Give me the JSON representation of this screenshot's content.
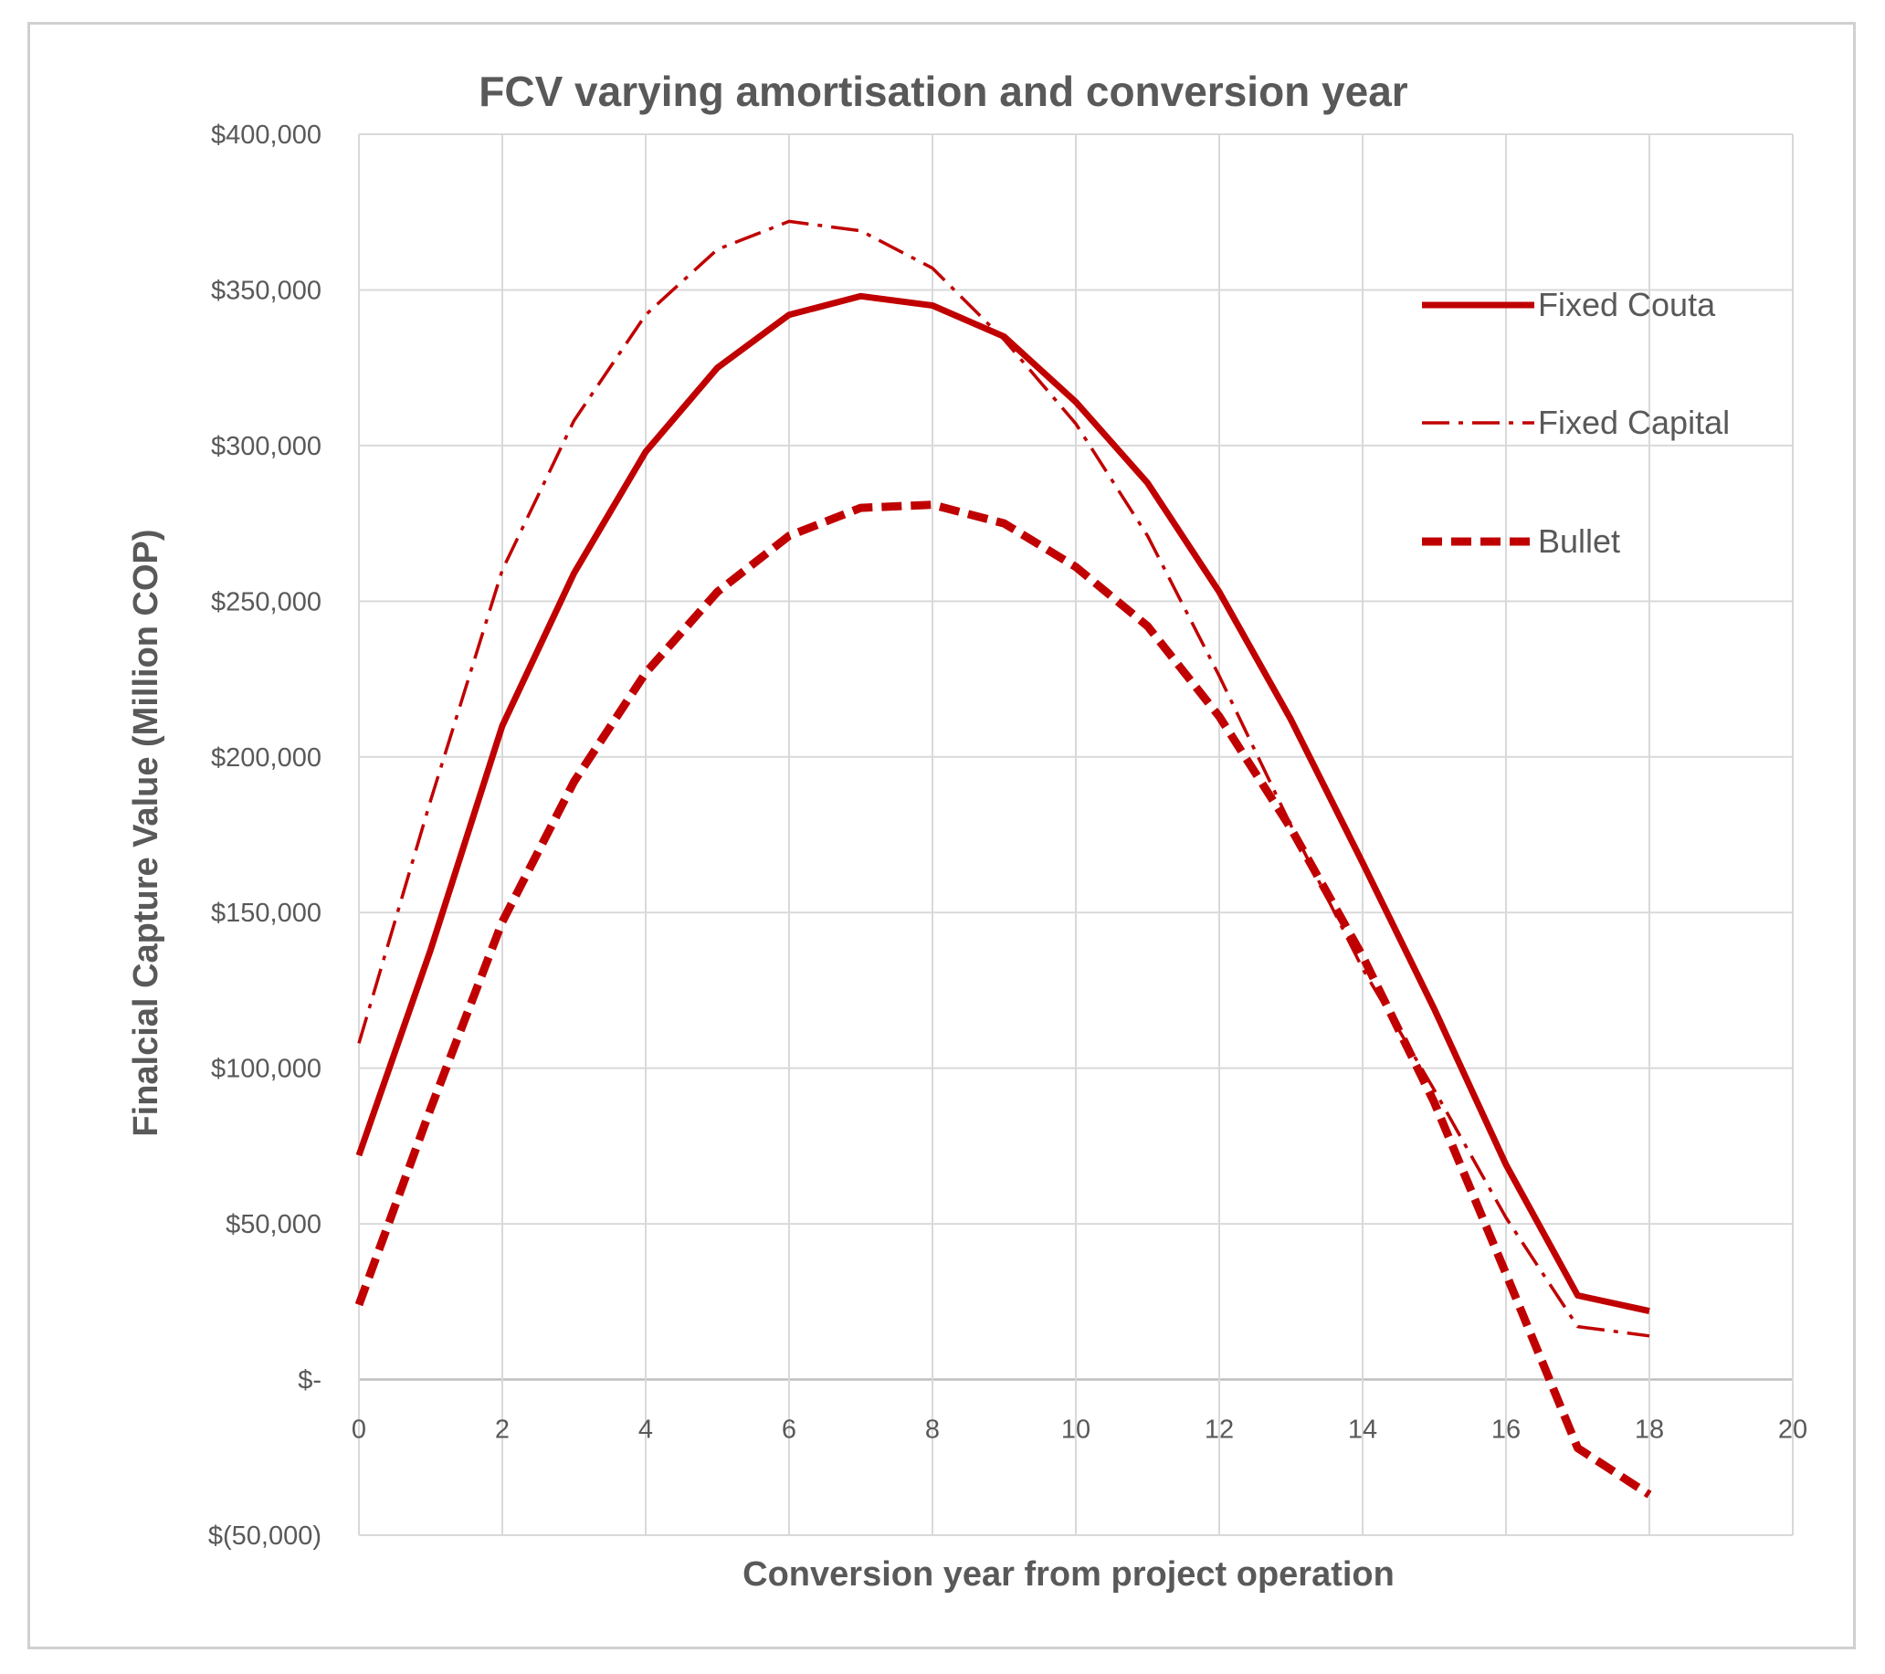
{
  "chart_data": {
    "type": "line",
    "title": "FCV varying amortisation and conversion year",
    "xlabel": "Conversion year from project operation",
    "ylabel": "Finalcial Capture Value (Million COP)",
    "xlim": [
      0,
      20
    ],
    "ylim": [
      -50000,
      400000
    ],
    "x_ticks": [
      0,
      2,
      4,
      6,
      8,
      10,
      12,
      14,
      16,
      18,
      20
    ],
    "x_tick_labels": [
      "0",
      "2",
      "4",
      "6",
      "8",
      "10",
      "12",
      "14",
      "16",
      "18",
      "20"
    ],
    "y_ticks": [
      -50000,
      0,
      50000,
      100000,
      150000,
      200000,
      250000,
      300000,
      350000,
      400000
    ],
    "y_tick_labels": [
      "$(50,000)",
      "$-",
      "$50,000",
      "$100,000",
      "$150,000",
      "$200,000",
      "$250,000",
      "$300,000",
      "$350,000",
      "$400,000"
    ],
    "grid": true,
    "legend_position": "right",
    "color": "#c00000",
    "x": [
      0,
      1,
      2,
      3,
      4,
      5,
      6,
      7,
      8,
      9,
      10,
      11,
      12,
      13,
      14,
      15,
      16,
      17,
      18
    ],
    "series": [
      {
        "name": "Fixed Couta",
        "style": "solid",
        "values": [
          72000,
          138000,
          210000,
          259000,
          298000,
          325000,
          342000,
          348000,
          345000,
          335000,
          314000,
          288000,
          253000,
          212000,
          166000,
          119000,
          69000,
          27000,
          22000
        ]
      },
      {
        "name": "Fixed Capital",
        "style": "dash-dot",
        "values": [
          108000,
          186000,
          260000,
          308000,
          342000,
          363000,
          372000,
          369000,
          357000,
          334000,
          307000,
          271000,
          226000,
          178000,
          132000,
          93000,
          52000,
          17000,
          14000
        ]
      },
      {
        "name": "Bullet",
        "style": "dashed",
        "values": [
          24000,
          87000,
          147000,
          192000,
          227000,
          253000,
          271000,
          280000,
          281000,
          275000,
          261000,
          242000,
          213000,
          177000,
          136000,
          89000,
          34000,
          -22000,
          -37000
        ]
      }
    ]
  }
}
